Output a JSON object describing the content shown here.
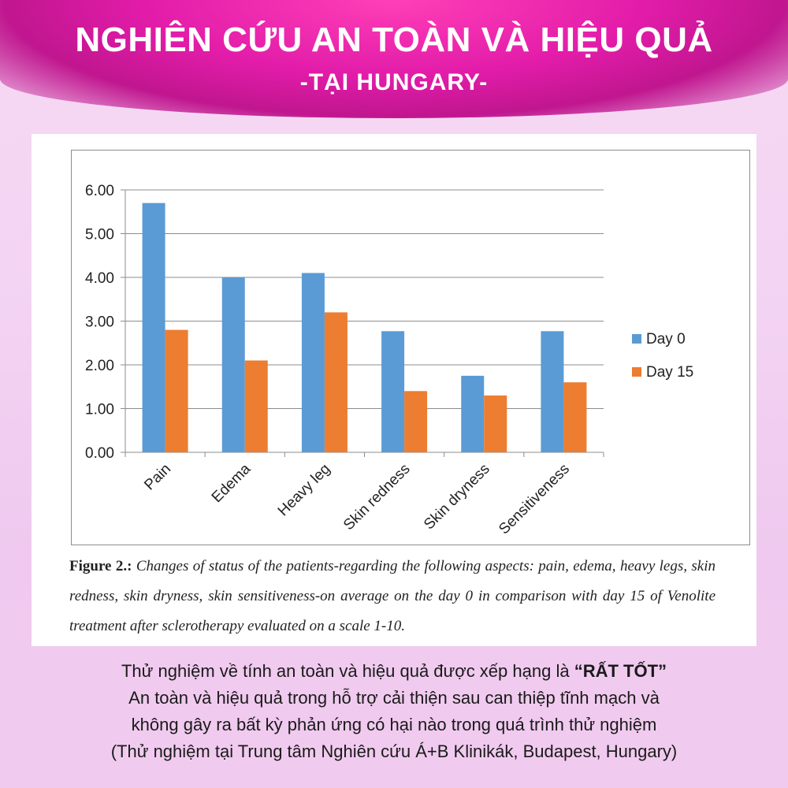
{
  "header": {
    "title": "NGHIÊN CỨU AN TOÀN VÀ HIỆU QUẢ",
    "subtitle": "-TẠI HUNGARY-"
  },
  "chart_data": {
    "type": "bar",
    "categories": [
      "Pain",
      "Edema",
      "Heavy leg",
      "Skin redness",
      "Skin dryness",
      "Sensitiveness"
    ],
    "series": [
      {
        "name": "Day 0",
        "color": "#5b9bd5",
        "values": [
          5.7,
          4.0,
          4.1,
          2.77,
          1.75,
          2.77
        ]
      },
      {
        "name": "Day 15",
        "color": "#ed7d31",
        "values": [
          2.8,
          2.1,
          3.2,
          1.4,
          1.3,
          1.6
        ]
      }
    ],
    "yticks": [
      "0.00",
      "1.00",
      "2.00",
      "3.00",
      "4.00",
      "5.00",
      "6.00"
    ],
    "ylim": [
      0,
      6
    ],
    "legend": "right"
  },
  "caption": {
    "label": "Figure 2.:",
    "text": "Changes of status of the patients-regarding the following aspects: pain, edema, heavy legs, skin redness, skin dryness, skin sensitiveness-on average on the day 0 in comparison with day 15 of Venolite treatment after sclerotherapy evaluated on a scale 1-10."
  },
  "bottom": {
    "line1_prefix": "Thử nghiệm về tính an toàn và hiệu quả được xếp hạng là ",
    "line1_bold": "“RẤT TỐT”",
    "line2": "An toàn và hiệu quả trong hỗ trợ cải thiện sau can thiệp tĩnh mạch và",
    "line3": "không gây ra bất kỳ phản ứng có hại nào trong quá trình thử nghiệm",
    "line4": "(Thử nghiệm tại Trung tâm Nghiên cứu Á+B Klinikák, Budapest, Hungary)"
  }
}
